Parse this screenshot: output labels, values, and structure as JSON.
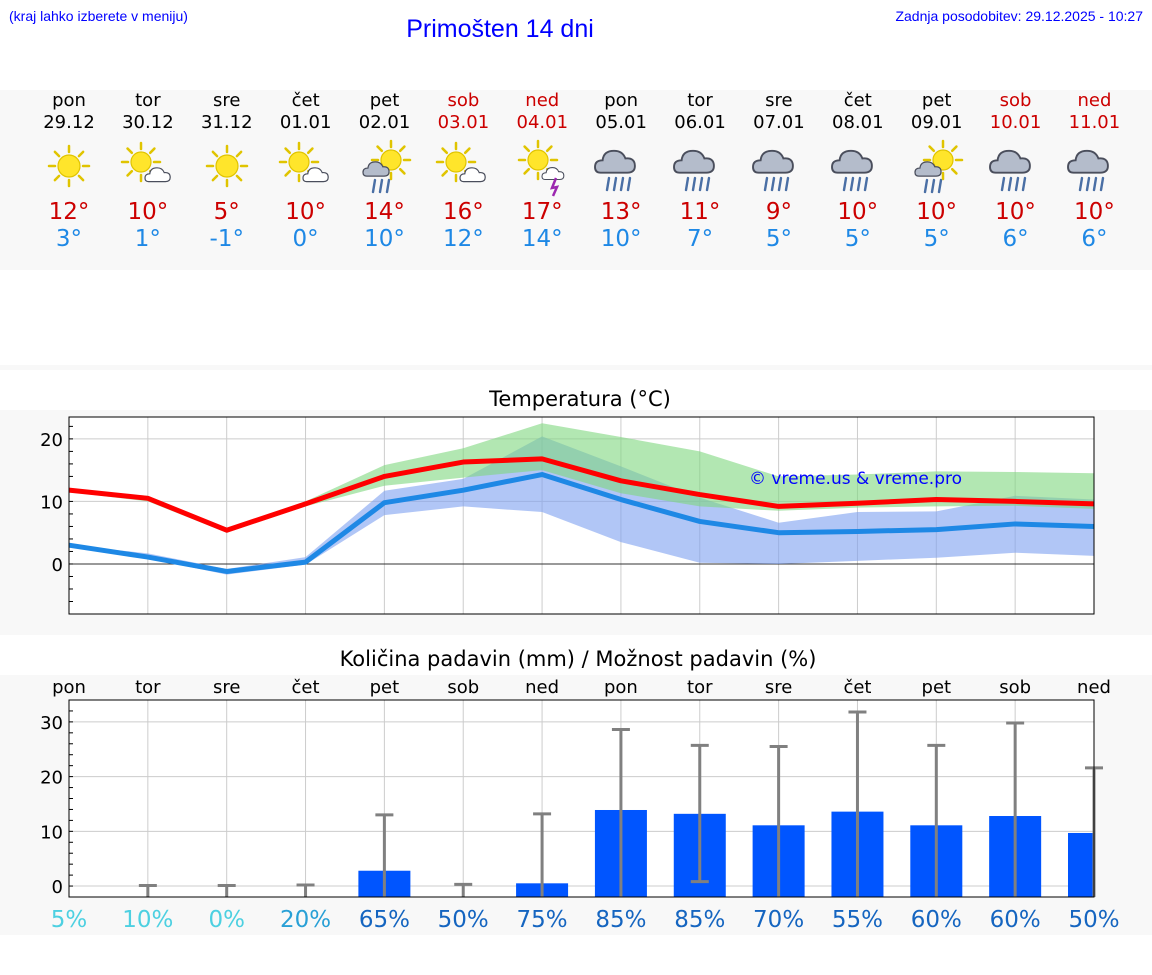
{
  "header": {
    "hint": "(kraj lahko izberete v meniju)",
    "title": "Primošten 14 dni",
    "updated": "Zadnja posodobitev: 29.12.2025 - 10:27"
  },
  "days": [
    {
      "name": "pon",
      "date": "29.12",
      "weekend": false,
      "icon": "sun-icon",
      "hi": "12°",
      "lo": "3°"
    },
    {
      "name": "tor",
      "date": "30.12",
      "weekend": false,
      "icon": "sun-cloud-icon",
      "hi": "10°",
      "lo": "1°"
    },
    {
      "name": "sre",
      "date": "31.12",
      "weekend": false,
      "icon": "sun-icon",
      "hi": "5°",
      "lo": "-1°"
    },
    {
      "name": "čet",
      "date": "01.01",
      "weekend": false,
      "icon": "sun-cloud-icon",
      "hi": "10°",
      "lo": "0°"
    },
    {
      "name": "pet",
      "date": "02.01",
      "weekend": false,
      "icon": "sun-rain-icon",
      "hi": "14°",
      "lo": "10°"
    },
    {
      "name": "sob",
      "date": "03.01",
      "weekend": true,
      "icon": "sun-cloud-icon",
      "hi": "16°",
      "lo": "12°"
    },
    {
      "name": "ned",
      "date": "04.01",
      "weekend": true,
      "icon": "sun-storm-icon",
      "hi": "17°",
      "lo": "14°"
    },
    {
      "name": "pon",
      "date": "05.01",
      "weekend": false,
      "icon": "rain-icon",
      "hi": "13°",
      "lo": "10°"
    },
    {
      "name": "tor",
      "date": "06.01",
      "weekend": false,
      "icon": "rain-icon",
      "hi": "11°",
      "lo": "7°"
    },
    {
      "name": "sre",
      "date": "07.01",
      "weekend": false,
      "icon": "rain-icon",
      "hi": "9°",
      "lo": "5°"
    },
    {
      "name": "čet",
      "date": "08.01",
      "weekend": false,
      "icon": "rain-icon",
      "hi": "10°",
      "lo": "5°"
    },
    {
      "name": "pet",
      "date": "09.01",
      "weekend": false,
      "icon": "sun-rain-icon",
      "hi": "10°",
      "lo": "5°"
    },
    {
      "name": "sob",
      "date": "10.01",
      "weekend": true,
      "icon": "rain-icon",
      "hi": "10°",
      "lo": "6°"
    },
    {
      "name": "ned",
      "date": "11.01",
      "weekend": true,
      "icon": "rain-icon",
      "hi": "10°",
      "lo": "6°"
    }
  ],
  "colors": {
    "title": "#0000ff",
    "weekend": "#cc0000",
    "hi": "#cc0000",
    "lo": "#1e88e5",
    "max_line": "#ff0000",
    "min_line": "#1e88e5",
    "max_band": "#7fd77f",
    "min_band": "#7da0f0",
    "bar": "#0055ff",
    "error": "#808080",
    "prob_low": "#4dd0e1",
    "prob_high": "#1565c0"
  },
  "chart_data": [
    {
      "type": "line",
      "title": "Temperatura (°C)",
      "watermark": "© vreme.us & vreme.pro",
      "ylim": [
        -8,
        23.5
      ],
      "yticks": [
        0,
        10,
        20
      ],
      "series": [
        {
          "name": "max",
          "values": [
            11.8,
            10.5,
            5.4,
            9.6,
            14.0,
            16.3,
            16.8,
            13.3,
            11.1,
            9.2,
            9.7,
            10.3,
            10.0,
            9.6
          ],
          "band_low": [
            11.5,
            10.0,
            5.0,
            9.2,
            12.5,
            13.8,
            15.0,
            11.3,
            9.2,
            8.5,
            9.0,
            9.2,
            9.3,
            8.8
          ],
          "band_high": [
            11.8,
            10.9,
            5.7,
            10.0,
            15.8,
            18.5,
            22.5,
            20.3,
            18.0,
            14.0,
            14.3,
            14.8,
            14.7,
            14.5
          ]
        },
        {
          "name": "min",
          "values": [
            3.0,
            1.1,
            -1.2,
            0.3,
            9.8,
            11.8,
            14.3,
            10.3,
            6.8,
            5.0,
            5.2,
            5.5,
            6.4,
            6.0
          ],
          "band_low": [
            3.0,
            0.9,
            -1.7,
            -0.1,
            7.8,
            9.2,
            8.3,
            3.5,
            0.2,
            0.0,
            0.5,
            1.0,
            1.8,
            1.3
          ],
          "band_high": [
            3.0,
            1.7,
            -0.8,
            1.1,
            11.7,
            13.6,
            20.4,
            15.6,
            10.6,
            6.6,
            8.3,
            8.4,
            10.9,
            10.3
          ]
        }
      ]
    },
    {
      "type": "bar",
      "title": "Količina padavin (mm) / Možnost padavin (%)",
      "categories": [
        "pon",
        "tor",
        "sre",
        "čet",
        "pet",
        "sob",
        "ned",
        "pon",
        "tor",
        "sre",
        "čet",
        "pet",
        "sob",
        "ned"
      ],
      "ylim": [
        -2,
        34
      ],
      "yticks": [
        0,
        10,
        20,
        30
      ],
      "values": [
        0,
        0,
        0,
        0,
        2.8,
        0,
        0.5,
        13.9,
        13.2,
        11.1,
        13.6,
        11.1,
        12.8,
        9.7
      ],
      "error_high": [
        0,
        0.1,
        0.1,
        0.2,
        13.0,
        0.3,
        13.2,
        28.6,
        25.7,
        25.5,
        31.8,
        25.7,
        29.8,
        21.6
      ],
      "error_low": [
        0,
        0,
        0,
        0,
        0,
        0,
        0,
        0,
        0.8,
        0,
        0,
        0,
        0,
        0
      ],
      "probability": [
        "5%",
        "10%",
        "0%",
        "20%",
        "65%",
        "50%",
        "75%",
        "85%",
        "85%",
        "70%",
        "55%",
        "60%",
        "60%",
        "50%"
      ]
    }
  ]
}
